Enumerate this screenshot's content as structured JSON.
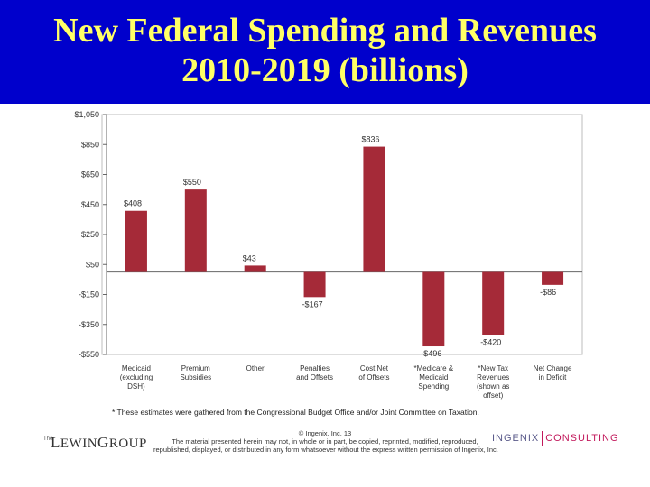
{
  "title": {
    "line1": "New Federal Spending and Revenues",
    "line2": "2010-2019 (billions)"
  },
  "chart_data": {
    "type": "bar",
    "categories": [
      [
        "Medicaid",
        "(excluding",
        "DSH)"
      ],
      [
        "Premium",
        "Subsidies"
      ],
      [
        "Other"
      ],
      [
        "Penalties",
        "and Offsets"
      ],
      [
        "Cost Net",
        "of Offsets"
      ],
      [
        "*Medicare &",
        "Medicaid",
        "Spending"
      ],
      [
        "*New Tax",
        "Revenues",
        "(shown as",
        "offset)"
      ],
      [
        "Net Change",
        "in Deficit"
      ]
    ],
    "values": [
      408,
      550,
      43,
      -167,
      836,
      -496,
      -420,
      -86
    ],
    "value_labels": [
      "$408",
      "$550",
      "$43",
      "-$167",
      "$836",
      "-$496",
      "-$420",
      "-$86"
    ],
    "ylim": [
      -550,
      1050
    ],
    "yticks": [
      1050,
      850,
      650,
      450,
      250,
      50,
      -150,
      -350,
      -550
    ],
    "ytick_labels": [
      "$1,050",
      "$850",
      "$650",
      "$450",
      "$250",
      "$50",
      "-$150",
      "-$350",
      "-$550"
    ],
    "bar_color": "#a52a38",
    "grid": false
  },
  "footnote": "*  These estimates were gathered from the Congressional Budget Office and/or Joint Committee on Taxation.",
  "copyright": {
    "line1": "© Ingenix, Inc. 13",
    "line2": "The material presented herein may not, in whole or in part, be copied, reprinted, modified, reproduced,",
    "line3": "republished, displayed, or distributed in any form whatsoever without the express written permission of Ingenix, Inc."
  },
  "logos": {
    "left_the": "The",
    "left_name_first": "L",
    "left_name_rest": "EWIN",
    "left_name_second": "G",
    "left_name_end": "ROUP",
    "right_a": "INGENIX",
    "right_b": "CONSULTING"
  }
}
